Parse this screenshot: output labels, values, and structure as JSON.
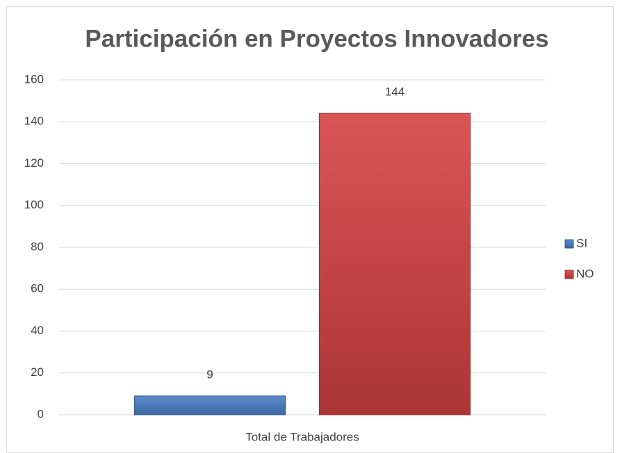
{
  "chart_data": {
    "type": "bar",
    "title": "Participación en Proyectos Innovadores",
    "categories": [
      "Total de Trabajadores"
    ],
    "series": [
      {
        "name": "SI",
        "color": "#4a7fc8",
        "values": [
          9
        ]
      },
      {
        "name": "NO",
        "color": "#d64242",
        "values": [
          144
        ]
      }
    ],
    "ylim": [
      0,
      160
    ],
    "yticks": [
      0,
      20,
      40,
      60,
      80,
      100,
      120,
      140,
      160
    ],
    "grid": true,
    "legend": "right"
  }
}
